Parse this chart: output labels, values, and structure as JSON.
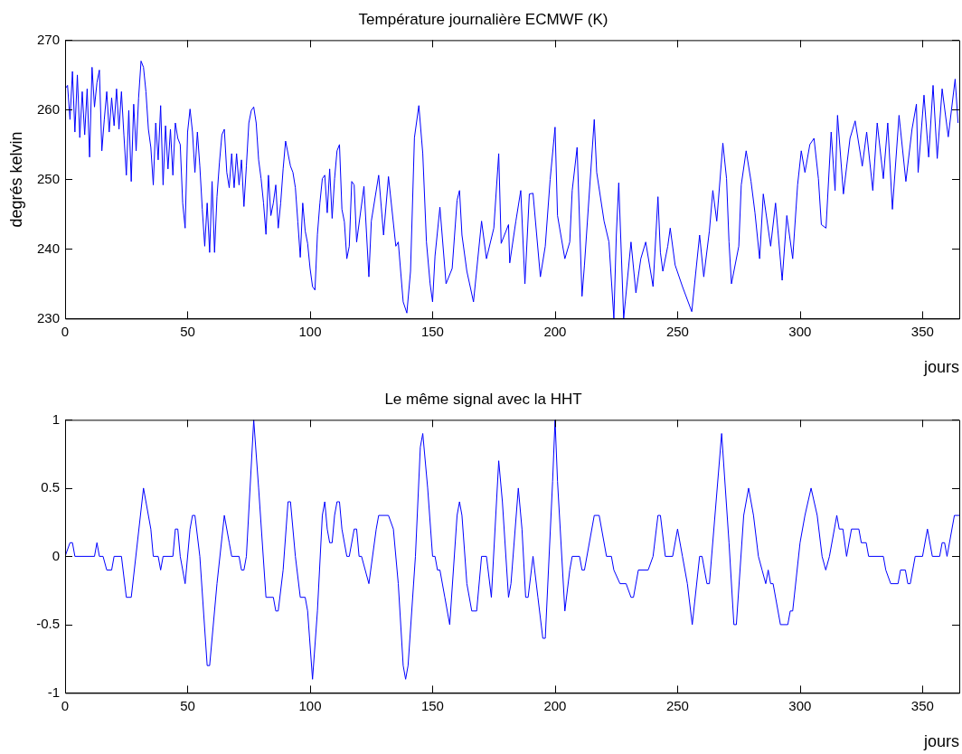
{
  "chart_data": [
    {
      "type": "line",
      "title": "Température journalière ECMWF (K)",
      "xlabel": "jours",
      "ylabel": "degrés kelvin",
      "xlim": [
        0,
        365
      ],
      "xticks": [
        0,
        50,
        100,
        150,
        200,
        250,
        300,
        350
      ],
      "ylim": [
        230,
        270
      ],
      "yticks": [
        230,
        240,
        250,
        260,
        270
      ],
      "grid": false,
      "legend": false,
      "marker": "none",
      "series": [
        {
          "color": "#0000ff",
          "x": [
            0,
            1,
            2,
            3,
            4,
            5,
            6,
            7,
            8,
            9,
            10,
            11,
            12,
            13,
            14,
            15,
            16,
            17,
            18,
            19,
            20,
            21,
            22,
            23,
            24,
            25,
            26,
            27,
            28,
            29,
            30,
            31,
            32,
            33,
            34,
            35,
            36,
            37,
            38,
            39,
            40,
            41,
            42,
            43,
            44,
            45,
            46,
            47,
            48,
            49,
            50,
            51,
            52,
            53,
            54,
            55,
            56,
            57,
            58,
            59,
            60,
            61,
            62,
            63,
            64,
            65,
            66,
            67,
            68,
            69,
            70,
            71,
            72,
            73,
            74,
            75,
            76,
            77,
            78,
            79,
            80,
            81,
            82,
            83,
            84,
            85,
            86,
            87,
            88,
            89,
            90,
            91,
            92,
            93,
            94,
            95,
            96,
            97,
            98,
            99,
            100,
            101,
            102,
            103,
            104,
            105,
            106,
            107,
            108,
            109,
            110,
            111,
            112,
            113,
            114,
            115,
            116,
            117,
            118,
            119,
            122,
            124,
            125,
            128,
            130,
            132,
            135,
            136,
            138,
            139.5,
            141,
            142.6,
            144.4,
            146,
            147.5,
            149,
            150,
            151,
            153,
            155.5,
            158,
            160,
            161,
            162,
            164,
            166.7,
            170,
            172,
            175,
            177,
            178,
            181,
            181.5,
            184,
            186,
            187.7,
            189.5,
            191,
            194,
            196,
            198,
            200,
            201,
            204,
            206,
            207,
            209,
            211,
            212,
            216,
            217,
            220,
            222,
            224,
            225,
            226,
            228,
            231,
            233,
            235,
            237,
            240,
            242,
            243,
            244,
            246,
            247,
            249,
            252,
            255.8,
            257.6,
            259,
            260.7,
            263,
            264.4,
            266,
            268.5,
            270,
            271,
            272,
            275,
            276,
            278,
            280,
            281.6,
            283.5,
            285,
            288,
            290,
            292.7,
            294.6,
            297,
            299,
            300.5,
            302,
            304,
            305.7,
            307.5,
            308.7,
            310.6,
            312.7,
            314.3,
            315.3,
            317.7,
            320.4,
            322.5,
            325.4,
            327.2,
            329.7,
            331.5,
            334,
            335.8,
            337.7,
            340.4,
            343.2,
            345.7,
            347.5,
            348.2,
            350.6,
            352.5,
            354.3,
            356,
            358,
            360.5,
            363.3,
            364.5
          ],
          "values": [
            263,
            263.5,
            258.6,
            265.5,
            256.8,
            265,
            256,
            262.6,
            256.4,
            263,
            253.2,
            266.1,
            260.4,
            263.9,
            265.7,
            254.1,
            258.6,
            262.6,
            256.8,
            261.7,
            257.7,
            263,
            257.2,
            262.6,
            256.4,
            250.6,
            259.9,
            249.7,
            260.8,
            254.1,
            261.7,
            267,
            266.1,
            262.6,
            257.2,
            254.6,
            249.2,
            258.1,
            252.8,
            260.6,
            249.2,
            257.7,
            251.5,
            257.2,
            250.6,
            258.1,
            255.9,
            255,
            246.6,
            243,
            256.8,
            260.1,
            256.8,
            251,
            256.8,
            251.9,
            245.7,
            240.4,
            246.6,
            239.5,
            249.7,
            239.5,
            247.5,
            252.4,
            256.4,
            257.2,
            251,
            248.8,
            253.7,
            248.8,
            253.7,
            249.2,
            252.8,
            246.1,
            251.9,
            258.1,
            259.9,
            260.4,
            258.1,
            252.8,
            250.1,
            246.6,
            242.1,
            250.6,
            244.8,
            246.6,
            249.2,
            243,
            246.6,
            251.5,
            255.5,
            253.7,
            251.9,
            251,
            248.8,
            243.9,
            238.8,
            246.6,
            242.6,
            240.8,
            237.2,
            234.6,
            234.1,
            242.1,
            246.6,
            250.1,
            250.6,
            245.2,
            251.5,
            244.4,
            250.1,
            254.1,
            255,
            245.7,
            243.9,
            238.6,
            240.4,
            249.7,
            249.2,
            241,
            249,
            236,
            244,
            250.6,
            242,
            250.4,
            240.4,
            241,
            232.4,
            230.8,
            236.8,
            256,
            260.6,
            253.7,
            241,
            235,
            232.4,
            239,
            246,
            235,
            237.2,
            247,
            248.4,
            242,
            236.8,
            232.4,
            244,
            238.6,
            243,
            253.7,
            240.8,
            243.5,
            238,
            244,
            248.4,
            235,
            247.9,
            248,
            236,
            240.4,
            250,
            257.5,
            244.8,
            238.6,
            241,
            248.4,
            254.6,
            233.2,
            237.7,
            258.6,
            251,
            244,
            241,
            230,
            242,
            249.5,
            230,
            241,
            233.7,
            238.6,
            241,
            234.6,
            247.5,
            239.5,
            236.8,
            240.4,
            243,
            237.7,
            234.6,
            231,
            237.2,
            242,
            236,
            242.6,
            248.4,
            244,
            255.2,
            250.1,
            241,
            235,
            240.4,
            249.2,
            254.1,
            249.7,
            245.2,
            238.6,
            247.9,
            240.4,
            246.6,
            235.5,
            244.8,
            238.6,
            249.2,
            254.1,
            251,
            255,
            255.9,
            250.1,
            243.5,
            243,
            256.8,
            248.4,
            259.2,
            247.9,
            255.9,
            258.4,
            251.9,
            256.8,
            248.4,
            258.1,
            250.1,
            258.1,
            245.7,
            259.2,
            249.7,
            257.2,
            260.8,
            251,
            262.1,
            253.2,
            263.5,
            253,
            263,
            256.1,
            264.4,
            258.1
          ]
        }
      ]
    },
    {
      "type": "line",
      "title": "Le même signal avec la HHT",
      "xlabel": "jours",
      "xlim": [
        0,
        365
      ],
      "xticks": [
        0,
        50,
        100,
        150,
        200,
        250,
        300,
        350
      ],
      "ylim": [
        -1,
        1
      ],
      "yticks": [
        -1,
        -0.5,
        0,
        0.5,
        1
      ],
      "grid": false,
      "legend": false,
      "marker": "none",
      "series": [
        {
          "color": "#0000ff",
          "x": [
            0,
            2,
            3,
            4,
            12,
            13,
            14,
            15.5,
            17,
            19,
            20,
            23,
            25,
            27,
            32,
            35,
            36,
            38,
            39,
            40,
            44,
            45,
            46,
            47,
            49,
            51,
            52,
            53,
            55,
            58,
            59,
            62,
            65,
            67,
            68,
            71,
            72,
            73,
            74,
            77,
            79,
            82,
            85,
            86,
            87,
            89,
            91,
            92,
            94,
            96,
            98,
            99,
            101,
            103,
            105,
            106,
            107,
            108,
            109,
            110,
            111,
            112,
            113,
            115,
            116,
            118,
            119,
            120,
            121,
            124,
            127,
            128,
            132,
            134,
            136,
            138,
            139,
            140,
            143,
            145,
            146,
            148,
            150,
            151,
            152,
            153,
            155,
            157,
            160,
            161,
            162,
            164,
            166,
            168,
            170,
            172,
            174,
            177,
            178.5,
            181,
            182,
            185,
            186.5,
            188,
            189,
            191,
            193,
            195,
            196,
            199,
            200,
            201,
            204,
            206,
            207,
            210,
            211,
            212,
            216,
            218,
            221,
            223,
            224,
            226.5,
            229,
            231,
            232,
            234,
            238,
            240,
            242,
            243,
            245,
            248,
            250,
            252,
            254,
            256,
            259,
            260,
            262,
            263,
            268,
            271,
            273,
            274,
            277,
            279,
            281,
            283,
            284.5,
            286,
            287,
            288,
            289,
            292,
            295,
            296,
            297,
            300,
            302,
            304.5,
            307,
            309,
            310.5,
            312,
            315,
            316,
            317.5,
            319,
            321,
            324,
            325,
            327,
            328,
            334,
            335,
            337,
            340,
            341,
            343,
            344,
            345,
            347,
            350,
            352,
            354,
            357,
            358,
            359,
            360,
            363,
            365
          ],
          "values": [
            0,
            0.1,
            0.1,
            0,
            0,
            0.1,
            0,
            0,
            -0.1,
            -0.1,
            0,
            0,
            -0.3,
            -0.3,
            0.5,
            0.2,
            0,
            0,
            -0.1,
            0,
            0,
            0.2,
            0.2,
            0,
            -0.2,
            0.2,
            0.3,
            0.3,
            0,
            -0.8,
            -0.8,
            -0.2,
            0.3,
            0.1,
            0,
            0,
            -0.1,
            -0.1,
            0,
            1,
            0.5,
            -0.3,
            -0.3,
            -0.4,
            -0.4,
            -0.1,
            0.4,
            0.4,
            0,
            -0.3,
            -0.3,
            -0.4,
            -0.9,
            -0.4,
            0.3,
            0.4,
            0.2,
            0.1,
            0.1,
            0.3,
            0.4,
            0.4,
            0.2,
            0,
            0,
            0.2,
            0.2,
            0,
            0,
            -0.2,
            0.2,
            0.3,
            0.3,
            0.2,
            -0.2,
            -0.8,
            -0.9,
            -0.8,
            0,
            0.8,
            0.9,
            0.5,
            0,
            0,
            -0.1,
            -0.1,
            -0.3,
            -0.5,
            0.3,
            0.4,
            0.3,
            -0.2,
            -0.4,
            -0.4,
            0,
            0,
            -0.3,
            0.7,
            0.4,
            -0.3,
            -0.2,
            0.5,
            0.2,
            -0.3,
            -0.3,
            0,
            -0.3,
            -0.6,
            -0.6,
            0.55,
            1,
            0.55,
            -0.4,
            -0.1,
            0,
            0,
            -0.1,
            -0.1,
            0.3,
            0.3,
            0,
            0,
            -0.1,
            -0.2,
            -0.2,
            -0.3,
            -0.3,
            -0.1,
            -0.1,
            0,
            0.3,
            0.3,
            0,
            0,
            0.2,
            0,
            -0.2,
            -0.5,
            0,
            0,
            -0.2,
            -0.2,
            0.9,
            0.1,
            -0.5,
            -0.5,
            0.3,
            0.5,
            0.3,
            0,
            -0.1,
            -0.2,
            -0.1,
            -0.2,
            -0.2,
            -0.5,
            -0.5,
            -0.4,
            -0.4,
            0.1,
            0.3,
            0.5,
            0.3,
            0,
            -0.1,
            0,
            0.3,
            0.2,
            0.2,
            0,
            0.2,
            0.2,
            0.1,
            0.1,
            0,
            0,
            -0.1,
            -0.2,
            -0.2,
            -0.1,
            -0.1,
            -0.2,
            -0.2,
            0,
            0,
            0.2,
            0,
            0,
            0.1,
            0.1,
            0,
            0.3,
            0.3
          ]
        }
      ]
    }
  ]
}
